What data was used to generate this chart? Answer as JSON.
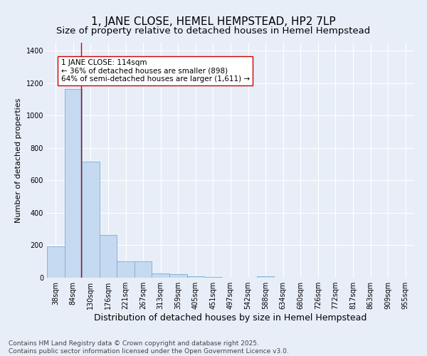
{
  "title": "1, JANE CLOSE, HEMEL HEMPSTEAD, HP2 7LP",
  "subtitle": "Size of property relative to detached houses in Hemel Hempstead",
  "xlabel": "Distribution of detached houses by size in Hemel Hempstead",
  "ylabel": "Number of detached properties",
  "categories": [
    "38sqm",
    "84sqm",
    "130sqm",
    "176sqm",
    "221sqm",
    "267sqm",
    "313sqm",
    "359sqm",
    "405sqm",
    "451sqm",
    "497sqm",
    "542sqm",
    "588sqm",
    "634sqm",
    "680sqm",
    "726sqm",
    "772sqm",
    "817sqm",
    "863sqm",
    "909sqm",
    "955sqm"
  ],
  "values": [
    193,
    1165,
    718,
    262,
    100,
    100,
    25,
    22,
    10,
    4,
    0,
    0,
    10,
    0,
    0,
    0,
    0,
    0,
    0,
    0,
    0
  ],
  "bar_color": "#c5d9f0",
  "bar_edge_color": "#7bafd4",
  "background_color": "#e8eef8",
  "grid_color": "#ffffff",
  "annotation_box_text": "1 JANE CLOSE: 114sqm\n← 36% of detached houses are smaller (898)\n64% of semi-detached houses are larger (1,611) →",
  "vline_x": 1.45,
  "vline_color": "#cc0000",
  "footer_text": "Contains HM Land Registry data © Crown copyright and database right 2025.\nContains public sector information licensed under the Open Government Licence v3.0.",
  "ylim": [
    0,
    1450
  ],
  "title_fontsize": 11,
  "subtitle_fontsize": 9.5,
  "xlabel_fontsize": 9,
  "ylabel_fontsize": 8,
  "tick_fontsize": 7,
  "footer_fontsize": 6.5
}
